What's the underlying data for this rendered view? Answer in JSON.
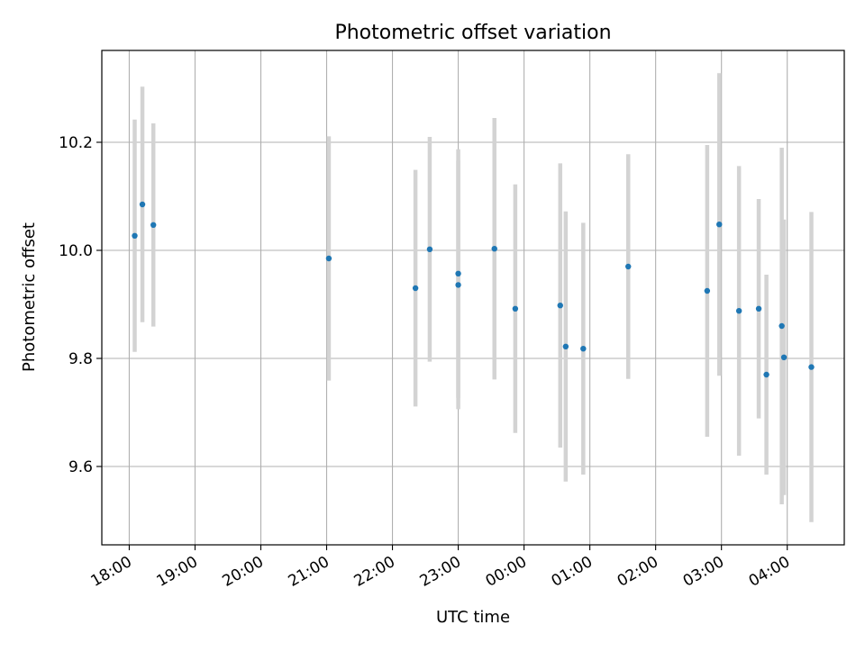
{
  "chart_data": {
    "type": "scatter",
    "title": "Photometric offset variation",
    "xlabel": "UTC time",
    "ylabel": "Photometric offset",
    "x_ticks": [
      "18:00",
      "19:00",
      "20:00",
      "21:00",
      "22:00",
      "23:00",
      "00:00",
      "01:00",
      "02:00",
      "03:00",
      "04:00"
    ],
    "y_ticks": [
      "9.6",
      "9.8",
      "10.0",
      "10.2"
    ],
    "x_tick_values": [
      "18:00",
      "19:00",
      "20:00",
      "21:00",
      "22:00",
      "23:00",
      "00:00",
      "01:00",
      "02:00",
      "03:00",
      "04:00"
    ],
    "y_tick_values": [
      9.6,
      9.8,
      10.0,
      10.2
    ],
    "xlim": [
      "17:35",
      "04:52"
    ],
    "ylim": [
      9.455,
      10.37
    ],
    "grid": true,
    "colors": {
      "point": "#1f77b4",
      "errorbar": "#d3d3d3",
      "grid": "#b0b0b0",
      "axes": "#000000"
    },
    "points": [
      {
        "x": "18:05",
        "y": 10.027,
        "err": 0.215
      },
      {
        "x": "18:12",
        "y": 10.085,
        "err": 0.218
      },
      {
        "x": "18:22",
        "y": 10.047,
        "err": 0.188
      },
      {
        "x": "21:02",
        "y": 9.985,
        "err": 0.226
      },
      {
        "x": "22:21",
        "y": 9.93,
        "err": 0.219
      },
      {
        "x": "22:34",
        "y": 10.002,
        "err": 0.208
      },
      {
        "x": "23:00",
        "y": 9.957,
        "err": 0.23
      },
      {
        "x": "23:00",
        "y": 9.936,
        "err": 0.23
      },
      {
        "x": "23:33",
        "y": 10.003,
        "err": 0.242
      },
      {
        "x": "23:52",
        "y": 9.892,
        "err": 0.23
      },
      {
        "x": "00:33",
        "y": 9.898,
        "err": 0.263
      },
      {
        "x": "00:38",
        "y": 9.822,
        "err": 0.25
      },
      {
        "x": "00:54",
        "y": 9.818,
        "err": 0.233
      },
      {
        "x": "01:35",
        "y": 9.97,
        "err": 0.208
      },
      {
        "x": "02:47",
        "y": 9.925,
        "err": 0.27
      },
      {
        "x": "02:58",
        "y": 10.048,
        "err": 0.28
      },
      {
        "x": "03:16",
        "y": 9.888,
        "err": 0.268
      },
      {
        "x": "03:34",
        "y": 9.892,
        "err": 0.203
      },
      {
        "x": "03:41",
        "y": 9.77,
        "err": 0.185
      },
      {
        "x": "03:55",
        "y": 9.86,
        "err": 0.33
      },
      {
        "x": "03:57",
        "y": 9.802,
        "err": 0.255
      },
      {
        "x": "04:22",
        "y": 9.784,
        "err": 0.287
      }
    ]
  }
}
